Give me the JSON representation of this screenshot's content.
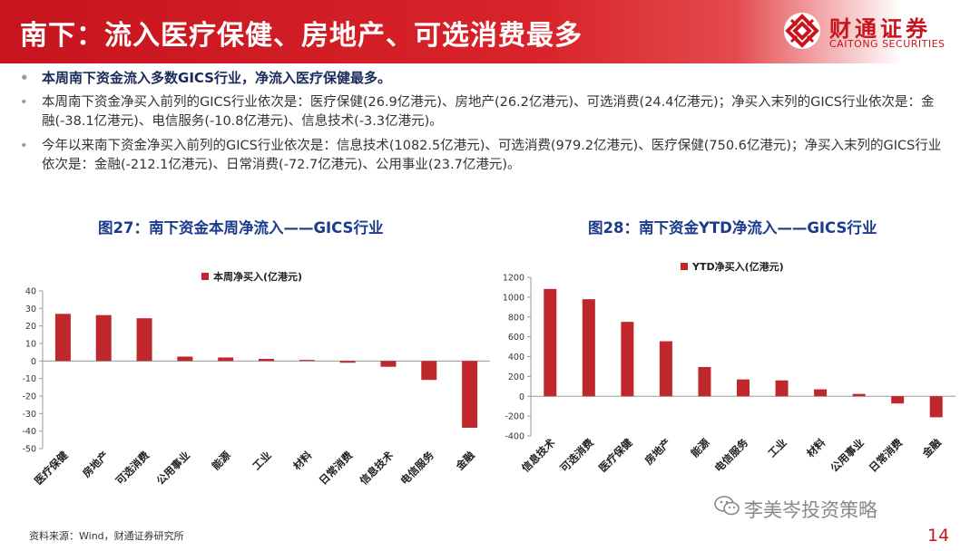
{
  "header": {
    "title": "南下：流入医疗保健、房地产、可选消费最多"
  },
  "logo": {
    "name_cn": "财通证券",
    "name_en": "CAITONG SECURITIES"
  },
  "bullets": [
    {
      "text": "本周南下资金流入多数GICS行业，净流入医疗保健最多。"
    },
    {
      "text": "本周南下资金净买入前列的GICS行业依次是：医疗保健(26.9亿港元)、房地产(26.2亿港元)、可选消费(24.4亿港元)；净买入末列的GICS行业依次是：金融(-38.1亿港元)、电信服务(-10.8亿港元)、信息技术(-3.3亿港元)。"
    },
    {
      "text": "今年以来南下资金净买入前列的GICS行业依次是：信息技术(1082.5亿港元)、可选消费(979.2亿港元)、医疗保健(750.6亿港元)；净买入末列的GICS行业依次是：金融(-212.1亿港元)、日常消费(-72.7亿港元)、公用事业(23.7亿港元)。"
    }
  ],
  "chart_titles": [
    "图27：南下资金本周净流入——GICS行业",
    "图28：南下资金YTD净流入——GICS行业"
  ],
  "source": "资料来源：Wind，财通证券研究所",
  "watermark": "李美岑投资策略",
  "page_number": "14",
  "colors": {
    "brand_red": "#c8141e",
    "bar_red": "#c0272d",
    "title_blue": "#1b3b8c"
  },
  "chart_data": [
    {
      "type": "bar",
      "title": "",
      "legend": "本周净买入(亿港元)",
      "legend_position": "top-center",
      "categories": [
        "医疗保健",
        "房地产",
        "可选消费",
        "公用事业",
        "能源",
        "工业",
        "材料",
        "日常消费",
        "信息技术",
        "电信服务",
        "金融"
      ],
      "series": [
        {
          "name": "本周净买入(亿港元)",
          "values": [
            26.9,
            26.2,
            24.4,
            2.5,
            2.0,
            1.2,
            0.6,
            -1.0,
            -3.3,
            -10.8,
            -38.1
          ]
        }
      ],
      "ylim": [
        -50,
        40
      ],
      "yticks": [
        -50,
        -40,
        -30,
        -20,
        -10,
        0,
        10,
        20,
        30,
        40
      ],
      "grid": false
    },
    {
      "type": "bar",
      "title": "",
      "legend": "YTD净买入(亿港元)",
      "legend_position": "top-center",
      "categories": [
        "信息技术",
        "可选消费",
        "医疗保健",
        "房地产",
        "能源",
        "电信服务",
        "工业",
        "材料",
        "公用事业",
        "日常消费",
        "金融"
      ],
      "series": [
        {
          "name": "YTD净买入(亿港元)",
          "values": [
            1082.5,
            979.2,
            750.6,
            555,
            295,
            170,
            160,
            70,
            23.7,
            -72.7,
            -212.1
          ]
        }
      ],
      "ylim": [
        -400,
        1200
      ],
      "yticks": [
        -400,
        -200,
        0,
        200,
        400,
        600,
        800,
        1000,
        1200
      ],
      "grid": false
    }
  ]
}
